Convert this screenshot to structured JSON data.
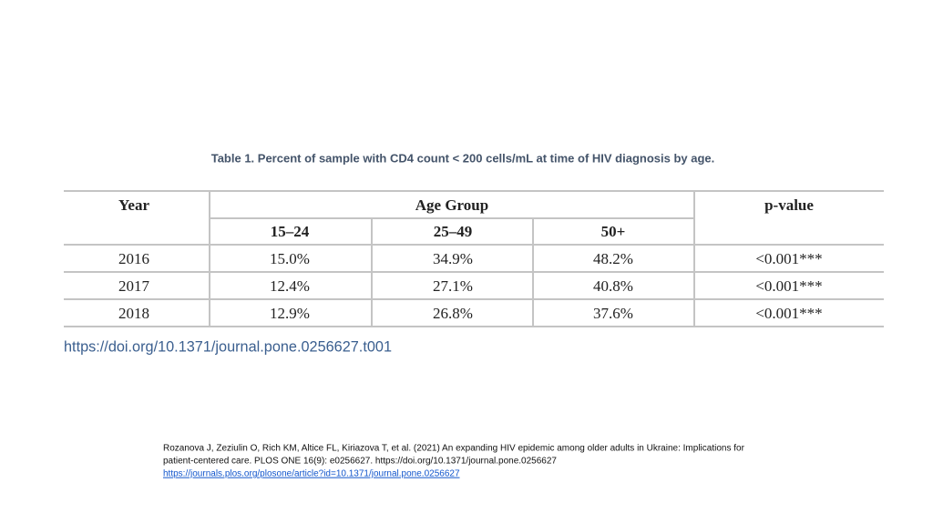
{
  "title": "Table 1. Percent of sample with CD4 count < 200 cells/mL at time of HIV diagnosis by age.",
  "table": {
    "headers": {
      "year": "Year",
      "age_group": "Age Group",
      "p_value": "p-value",
      "age_bins": [
        "15–24",
        "25–49",
        "50+"
      ]
    },
    "rows": [
      [
        "2016",
        "15.0%",
        "34.9%",
        "48.2%",
        "<0.001***"
      ],
      [
        "2017",
        "12.4%",
        "27.1%",
        "40.8%",
        "<0.001***"
      ],
      [
        "2018",
        "12.9%",
        "26.8%",
        "37.6%",
        "<0.001***"
      ]
    ]
  },
  "doi": "https://doi.org/10.1371/journal.pone.0256627.t001",
  "citation": {
    "lines": [
      "Rozanova J, Zeziulin O, Rich KM, Altice FL, Kiriazova T, et al. (2021) An expanding HIV epidemic among older adults in Ukraine: Implications for",
      "patient-centered care. PLOS ONE 16(9): e0256627. https://doi.org/10.1371/journal.pone.0256627"
    ],
    "link": "https://journals.plos.org/plosone/article?id=10.1371/journal.pone.0256627"
  }
}
